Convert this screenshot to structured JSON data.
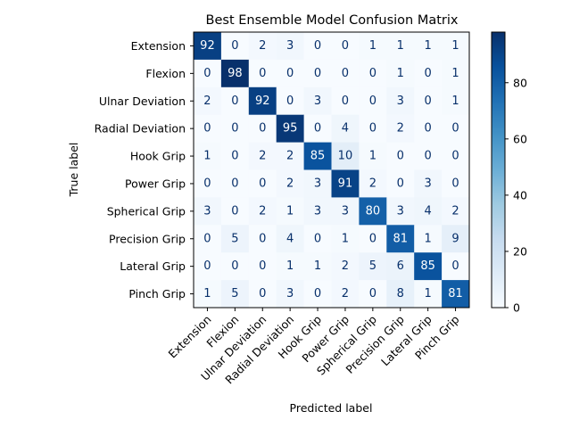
{
  "chart_data": {
    "type": "heatmap",
    "title": "Best Ensemble Model Confusion Matrix",
    "xlabel": "Predicted label",
    "ylabel": "True label",
    "row_labels": [
      "Extension",
      "Flexion",
      "Ulnar Deviation",
      "Radial Deviation",
      "Hook Grip",
      "Power Grip",
      "Spherical Grip",
      "Precision Grip",
      "Lateral Grip",
      "Pinch Grip"
    ],
    "col_labels": [
      "Extension",
      "Flexion",
      "Ulnar Deviation",
      "Radial Deviation",
      "Hook Grip",
      "Power Grip",
      "Spherical Grip",
      "Precision Grip",
      "Lateral Grip",
      "Pinch Grip"
    ],
    "values": [
      [
        92,
        0,
        2,
        3,
        0,
        0,
        1,
        1,
        1,
        1
      ],
      [
        0,
        98,
        0,
        0,
        0,
        0,
        0,
        1,
        0,
        1
      ],
      [
        2,
        0,
        92,
        0,
        3,
        0,
        0,
        3,
        0,
        1
      ],
      [
        0,
        0,
        0,
        95,
        0,
        4,
        0,
        2,
        0,
        0
      ],
      [
        1,
        0,
        2,
        2,
        85,
        10,
        1,
        0,
        0,
        0
      ],
      [
        0,
        0,
        0,
        2,
        3,
        91,
        2,
        0,
        3,
        0
      ],
      [
        3,
        0,
        2,
        1,
        3,
        3,
        80,
        3,
        4,
        2
      ],
      [
        0,
        5,
        0,
        4,
        0,
        1,
        0,
        81,
        1,
        9
      ],
      [
        0,
        0,
        0,
        1,
        1,
        2,
        5,
        6,
        85,
        0
      ],
      [
        1,
        5,
        0,
        3,
        0,
        2,
        0,
        8,
        1,
        81
      ]
    ],
    "colormap": "Blues",
    "colorbar": {
      "ticks": [
        0,
        20,
        40,
        60,
        80
      ],
      "range": [
        0,
        98
      ]
    },
    "grid": false
  }
}
